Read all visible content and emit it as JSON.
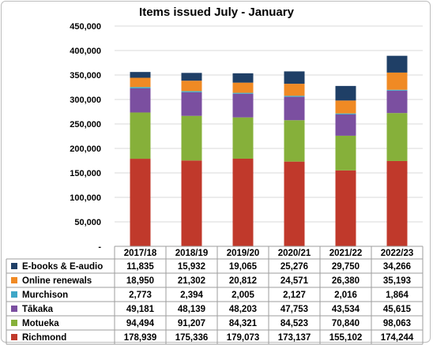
{
  "chart_data": {
    "type": "bar",
    "stacked": true,
    "title": "Items issued July - January",
    "categories": [
      "2017/18",
      "2018/19",
      "2019/20",
      "2020/21",
      "2021/22",
      "2022/23"
    ],
    "yticks": [
      "-",
      "50,000",
      "100,000",
      "150,000",
      "200,000",
      "250,000",
      "300,000",
      "350,000",
      "400,000",
      "450,000"
    ],
    "ylim": [
      0,
      450000
    ],
    "grid": true,
    "legend": "data-table",
    "series": [
      {
        "name": "Richmond",
        "color": "#c0392b",
        "values": [
          178939,
          175336,
          179073,
          173137,
          155102,
          174244
        ],
        "labels": [
          "178,939",
          "175,336",
          "179,073",
          "173,137",
          "155,102",
          "174,244"
        ]
      },
      {
        "name": "Motueka",
        "color": "#86b03a",
        "values": [
          94494,
          91207,
          84321,
          84523,
          70840,
          98063
        ],
        "labels": [
          "94,494",
          "91,207",
          "84,321",
          "84,523",
          "70,840",
          "98,063"
        ]
      },
      {
        "name": "Tākaka",
        "color": "#7b4fa0",
        "values": [
          49181,
          48139,
          48203,
          47753,
          43534,
          45615
        ],
        "labels": [
          "49,181",
          "48,139",
          "48,203",
          "47,753",
          "43,534",
          "45,615"
        ]
      },
      {
        "name": "Murchison",
        "color": "#3fa7c7",
        "values": [
          2773,
          2394,
          2005,
          2127,
          2016,
          1864
        ],
        "labels": [
          "2,773",
          "2,394",
          "2,005",
          "2,127",
          "2,016",
          "1,864"
        ]
      },
      {
        "name": "Online renewals",
        "color": "#f08a24",
        "values": [
          18950,
          21302,
          20812,
          24571,
          26380,
          35193
        ],
        "labels": [
          "18,950",
          "21,302",
          "20,812",
          "24,571",
          "26,380",
          "35,193"
        ]
      },
      {
        "name": "E-books & E-audio",
        "color": "#1f3f66",
        "values": [
          11835,
          15932,
          19065,
          25276,
          29750,
          34266
        ],
        "labels": [
          "11,835",
          "15,932",
          "19,065",
          "25,276",
          "29,750",
          "34,266"
        ]
      }
    ]
  }
}
